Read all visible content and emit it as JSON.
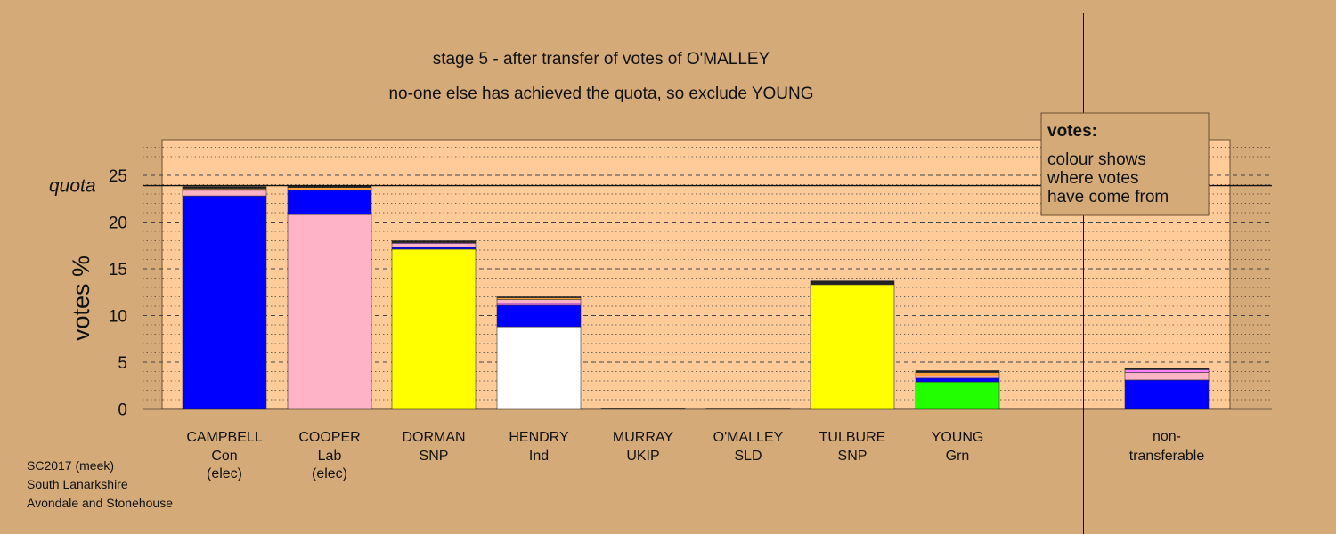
{
  "chart_data": {
    "type": "bar",
    "stacked": true,
    "title": "stage 5 - after transfer of votes of O'MALLEY",
    "subtitle": "no-one else has achieved the quota, so exclude YOUNG",
    "ylabel": "votes %",
    "ylim": [
      0,
      28
    ],
    "yticks": [
      "0",
      "5",
      "10",
      "15",
      "20",
      "25"
    ],
    "quota_label": "quota",
    "quota": 23.9,
    "grid": true,
    "candidates": [
      {
        "name": "CAMPBELL",
        "party": "Con",
        "status": "(elec)",
        "segments": [
          {
            "color": "#0000ff",
            "value": 22.8
          },
          {
            "color": "#ffb3c6",
            "value": 0.6
          },
          {
            "color": "#ff80ff",
            "value": 0.1
          },
          {
            "color": "#ffa040",
            "value": 0.1
          },
          {
            "color": "#222222",
            "value": 0.2
          }
        ]
      },
      {
        "name": "COOPER",
        "party": "Lab",
        "status": "(elec)",
        "segments": [
          {
            "color": "#ffb3c6",
            "value": 20.8
          },
          {
            "color": "#0000ff",
            "value": 2.6
          },
          {
            "color": "#ffa040",
            "value": 0.3
          },
          {
            "color": "#222222",
            "value": 0.2
          }
        ]
      },
      {
        "name": "DORMAN",
        "party": "SNP",
        "status": "",
        "segments": [
          {
            "color": "#ffff00",
            "value": 17.1
          },
          {
            "color": "#0000ff",
            "value": 0.2
          },
          {
            "color": "#ffb3c6",
            "value": 0.4
          },
          {
            "color": "#ff80ff",
            "value": 0.1
          },
          {
            "color": "#222222",
            "value": 0.2
          }
        ]
      },
      {
        "name": "HENDRY",
        "party": "Ind",
        "status": "",
        "segments": [
          {
            "color": "#ffffff",
            "value": 8.8
          },
          {
            "color": "#0000ff",
            "value": 2.3
          },
          {
            "color": "#ff80ff",
            "value": 0.2
          },
          {
            "color": "#ffb3c6",
            "value": 0.4
          },
          {
            "color": "#ffa040",
            "value": 0.2
          },
          {
            "color": "#222222",
            "value": 0.1
          }
        ]
      },
      {
        "name": "MURRAY",
        "party": "UKIP",
        "status": "",
        "segments": [
          {
            "color": "#222222",
            "value": 0.1
          }
        ]
      },
      {
        "name": "O'MALLEY",
        "party": "SLD",
        "status": "",
        "segments": [
          {
            "color": "#ffa040",
            "value": 0.1
          }
        ]
      },
      {
        "name": "TULBURE",
        "party": "SNP",
        "status": "",
        "segments": [
          {
            "color": "#ffff00",
            "value": 13.3
          },
          {
            "color": "#222222",
            "value": 0.4
          }
        ]
      },
      {
        "name": "YOUNG",
        "party": "Grn",
        "status": "",
        "segments": [
          {
            "color": "#22ff00",
            "value": 2.9
          },
          {
            "color": "#0000ff",
            "value": 0.4
          },
          {
            "color": "#ffb3c6",
            "value": 0.2
          },
          {
            "color": "#ffa040",
            "value": 0.4
          },
          {
            "color": "#222222",
            "value": 0.2
          }
        ]
      }
    ],
    "non_transferable": {
      "label_line1": "non-",
      "label_line2": "transferable",
      "segments": [
        {
          "color": "#0000ff",
          "value": 3.1
        },
        {
          "color": "#ffb3c6",
          "value": 0.8
        },
        {
          "color": "#ff80ff",
          "value": 0.3
        },
        {
          "color": "#222222",
          "value": 0.2
        }
      ]
    },
    "legend": {
      "title": "votes:",
      "lines": [
        "colour shows",
        "where votes",
        "have come from"
      ]
    }
  },
  "footer": {
    "lines": [
      "SC2017 (meek)",
      "South Lanarkshire",
      "Avondale and Stonehouse"
    ]
  },
  "colors": {
    "background": "#d4aa78",
    "plot_area": "#ffcc99"
  }
}
